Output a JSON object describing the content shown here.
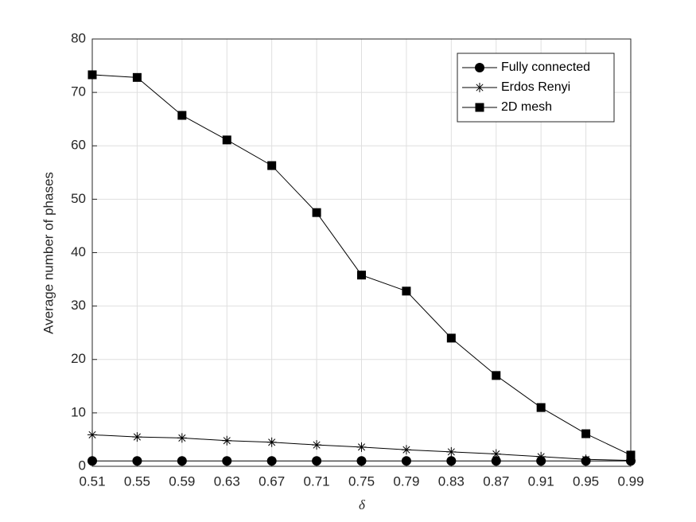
{
  "chart_data": {
    "type": "line",
    "x_label": "δ",
    "y_label": "Average number of phases",
    "x": [
      0.51,
      0.55,
      0.59,
      0.63,
      0.67,
      0.71,
      0.75,
      0.79,
      0.83,
      0.87,
      0.91,
      0.95,
      0.99
    ],
    "xlim": [
      0.51,
      0.99
    ],
    "xticks": [
      0.51,
      0.55,
      0.59,
      0.63,
      0.67,
      0.71,
      0.75,
      0.79,
      0.83,
      0.87,
      0.91,
      0.95,
      0.99
    ],
    "ylim": [
      0,
      80
    ],
    "yticks": [
      0,
      10,
      20,
      30,
      40,
      50,
      60,
      70,
      80
    ],
    "grid": true,
    "legend_position": "northeast",
    "series": [
      {
        "name": "Fully connected",
        "color": "#000000",
        "marker": "circle",
        "values": [
          1,
          1,
          1,
          1,
          1,
          1,
          1,
          1,
          1,
          1,
          1,
          1,
          1
        ]
      },
      {
        "name": "Erdos Renyi",
        "color": "#000000",
        "marker": "asterisk",
        "values": [
          5.9,
          5.5,
          5.3,
          4.8,
          4.5,
          4.0,
          3.6,
          3.1,
          2.7,
          2.3,
          1.8,
          1.3,
          1.1
        ]
      },
      {
        "name": "2D mesh",
        "color": "#000000",
        "marker": "square",
        "values": [
          73.3,
          72.8,
          65.7,
          61.1,
          56.3,
          47.5,
          35.8,
          32.8,
          24.0,
          17.0,
          11.0,
          6.1,
          2.1
        ]
      }
    ]
  }
}
